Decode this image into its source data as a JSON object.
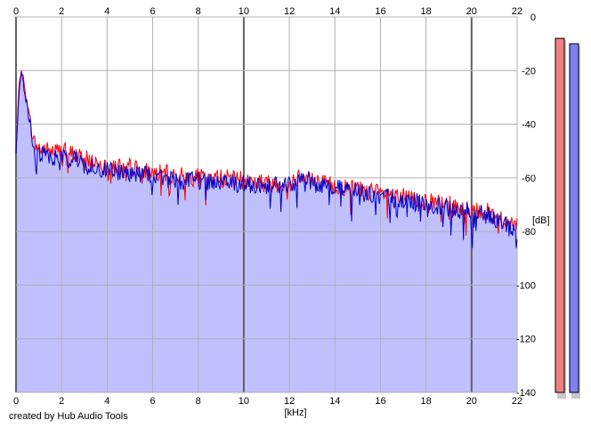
{
  "chart_data": {
    "type": "area",
    "title": "",
    "xlabel": "[kHz]",
    "ylabel": "[dB]",
    "xlim": [
      0,
      22
    ],
    "ylim": [
      -140,
      0
    ],
    "x_ticks": [
      "0",
      "2",
      "4",
      "6",
      "8",
      "10",
      "12",
      "14",
      "16",
      "18",
      "20",
      "22"
    ],
    "y_ticks": [
      "0",
      "-20",
      "-40",
      "-60",
      "-80",
      "-100",
      "-120",
      "-140"
    ],
    "grid": true,
    "series": [
      {
        "color": "#ff0000",
        "x": [
          0,
          0.1,
          0.2,
          0.25,
          0.4,
          0.5,
          0.6,
          0.8,
          1,
          1.5,
          2,
          2.5,
          3,
          3.5,
          4,
          5,
          6,
          7,
          8,
          9,
          10,
          11,
          12,
          12.6,
          13,
          14,
          15,
          16,
          17,
          18,
          19,
          20,
          20.5,
          21,
          21.5,
          22
        ],
        "values": [
          -50,
          -30,
          -21,
          -19,
          -28,
          -32,
          -38,
          -47,
          -49,
          -50,
          -50,
          -51,
          -53,
          -54,
          -55,
          -56,
          -58,
          -59,
          -60,
          -60,
          -61,
          -62,
          -62,
          -58,
          -61,
          -63,
          -64,
          -66,
          -67,
          -69,
          -70,
          -72,
          -72,
          -74,
          -76,
          -78
        ]
      },
      {
        "color": "#0000cc",
        "x": [
          0,
          0.1,
          0.2,
          0.25,
          0.4,
          0.5,
          0.6,
          0.8,
          1,
          1.5,
          2,
          2.5,
          3,
          3.5,
          4,
          5,
          6,
          7,
          8,
          9,
          10,
          11,
          12,
          12.6,
          13,
          14,
          15,
          16,
          17,
          18,
          19,
          20,
          20.5,
          21,
          21.5,
          22
        ],
        "values": [
          -52,
          -32,
          -22,
          -20,
          -30,
          -33,
          -40,
          -49,
          -51,
          -52,
          -52,
          -53,
          -55,
          -56,
          -57,
          -58,
          -59,
          -61,
          -61,
          -62,
          -62,
          -63,
          -63,
          -59,
          -62,
          -64,
          -65,
          -67,
          -68,
          -70,
          -71,
          -73,
          -73,
          -75,
          -77,
          -80
        ]
      }
    ],
    "fill_color": "#c0c0ff",
    "meters": [
      {
        "color": "#f08080",
        "value": -8
      },
      {
        "color": "#8080f0",
        "value": -10
      }
    ]
  },
  "footer": {
    "credit": "created by Hub Audio Tools"
  }
}
